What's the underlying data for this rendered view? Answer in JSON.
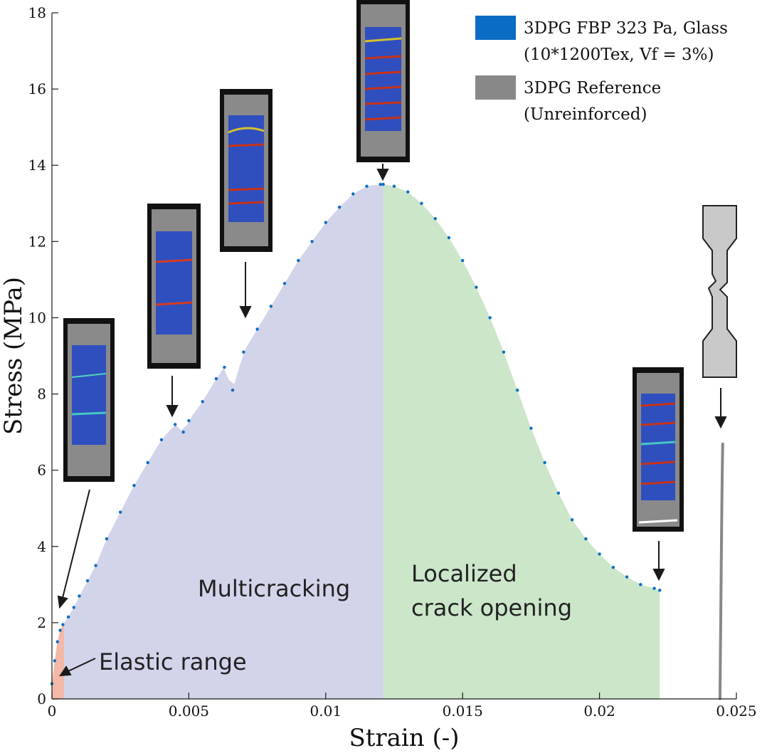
{
  "chart_data": {
    "type": "scatter",
    "xlabel": "Strain (-)",
    "ylabel": "Stress (MPa)",
    "xlim": [
      0,
      0.025
    ],
    "ylim": [
      0,
      18
    ],
    "x_ticks": [
      0,
      0.005,
      0.01,
      0.015,
      0.02,
      0.025
    ],
    "x_tick_labels": [
      "0",
      "0.005",
      "0.01",
      "0.015",
      "0.02",
      "0.025"
    ],
    "y_ticks": [
      0,
      2,
      4,
      6,
      8,
      10,
      12,
      14,
      16,
      18
    ],
    "y_tick_labels": [
      "0",
      "2",
      "4",
      "6",
      "8",
      "10",
      "12",
      "14",
      "16",
      "18"
    ],
    "grid": false,
    "legend": {
      "placement": "top-right",
      "entries": [
        {
          "line1": "3DPG FBP 323 Pa, Glass",
          "line2": "(10*1200Tex, Vf = 3%)",
          "color": "#0b6cc4"
        },
        {
          "line1": "3DPG Reference",
          "line2": "(Unreinforced)",
          "color": "#888888"
        }
      ]
    },
    "regions": [
      {
        "label": "Elastic range",
        "x": [
          0,
          0.00045
        ],
        "color": "#f4b8a8"
      },
      {
        "label": "Multicracking",
        "x": [
          0.00045,
          0.0121
        ],
        "color": "#d2d4ea"
      },
      {
        "label_line1": "Localized",
        "label_line2": "crack opening",
        "x": [
          0.0121,
          0.0222
        ],
        "color": "#cbe6c9"
      }
    ],
    "series": [
      {
        "name": "3DPG FBP 323 Pa, Glass (10*1200Tex, Vf = 3%)",
        "color": "#0b6cc4",
        "x": [
          0,
          0.0001,
          0.0002,
          0.0003,
          0.0004,
          0.0006,
          0.0008,
          0.001,
          0.0013,
          0.0016,
          0.002,
          0.0025,
          0.003,
          0.0035,
          0.004,
          0.0045,
          0.0048,
          0.005,
          0.0055,
          0.006,
          0.0063,
          0.0066,
          0.007,
          0.0075,
          0.008,
          0.0085,
          0.009,
          0.0095,
          0.01,
          0.0105,
          0.011,
          0.0115,
          0.012,
          0.0121,
          0.0125,
          0.013,
          0.0135,
          0.014,
          0.0145,
          0.015,
          0.0155,
          0.016,
          0.0165,
          0.017,
          0.0175,
          0.018,
          0.0185,
          0.019,
          0.0195,
          0.02,
          0.0205,
          0.021,
          0.0215,
          0.022,
          0.0222
        ],
        "y": [
          0.4,
          1.0,
          1.5,
          1.8,
          1.95,
          2.15,
          2.4,
          2.7,
          3.1,
          3.5,
          4.2,
          4.9,
          5.6,
          6.2,
          6.8,
          7.2,
          7.0,
          7.3,
          7.8,
          8.4,
          8.7,
          8.1,
          9.1,
          9.7,
          10.3,
          10.9,
          11.5,
          12.0,
          12.5,
          12.9,
          13.25,
          13.45,
          13.5,
          13.5,
          13.45,
          13.3,
          13.0,
          12.6,
          12.1,
          11.5,
          10.8,
          10.0,
          9.1,
          8.1,
          7.1,
          6.2,
          5.4,
          4.7,
          4.2,
          3.8,
          3.45,
          3.2,
          3.0,
          2.9,
          2.85
        ]
      },
      {
        "name": "3DPG Reference (Unreinforced)",
        "color": "#888888",
        "x": [
          0.0244,
          0.02442,
          0.02444,
          0.02446,
          0.02448,
          0.0245
        ],
        "y": [
          0,
          1.5,
          3.0,
          4.5,
          5.8,
          6.7
        ]
      }
    ]
  }
}
